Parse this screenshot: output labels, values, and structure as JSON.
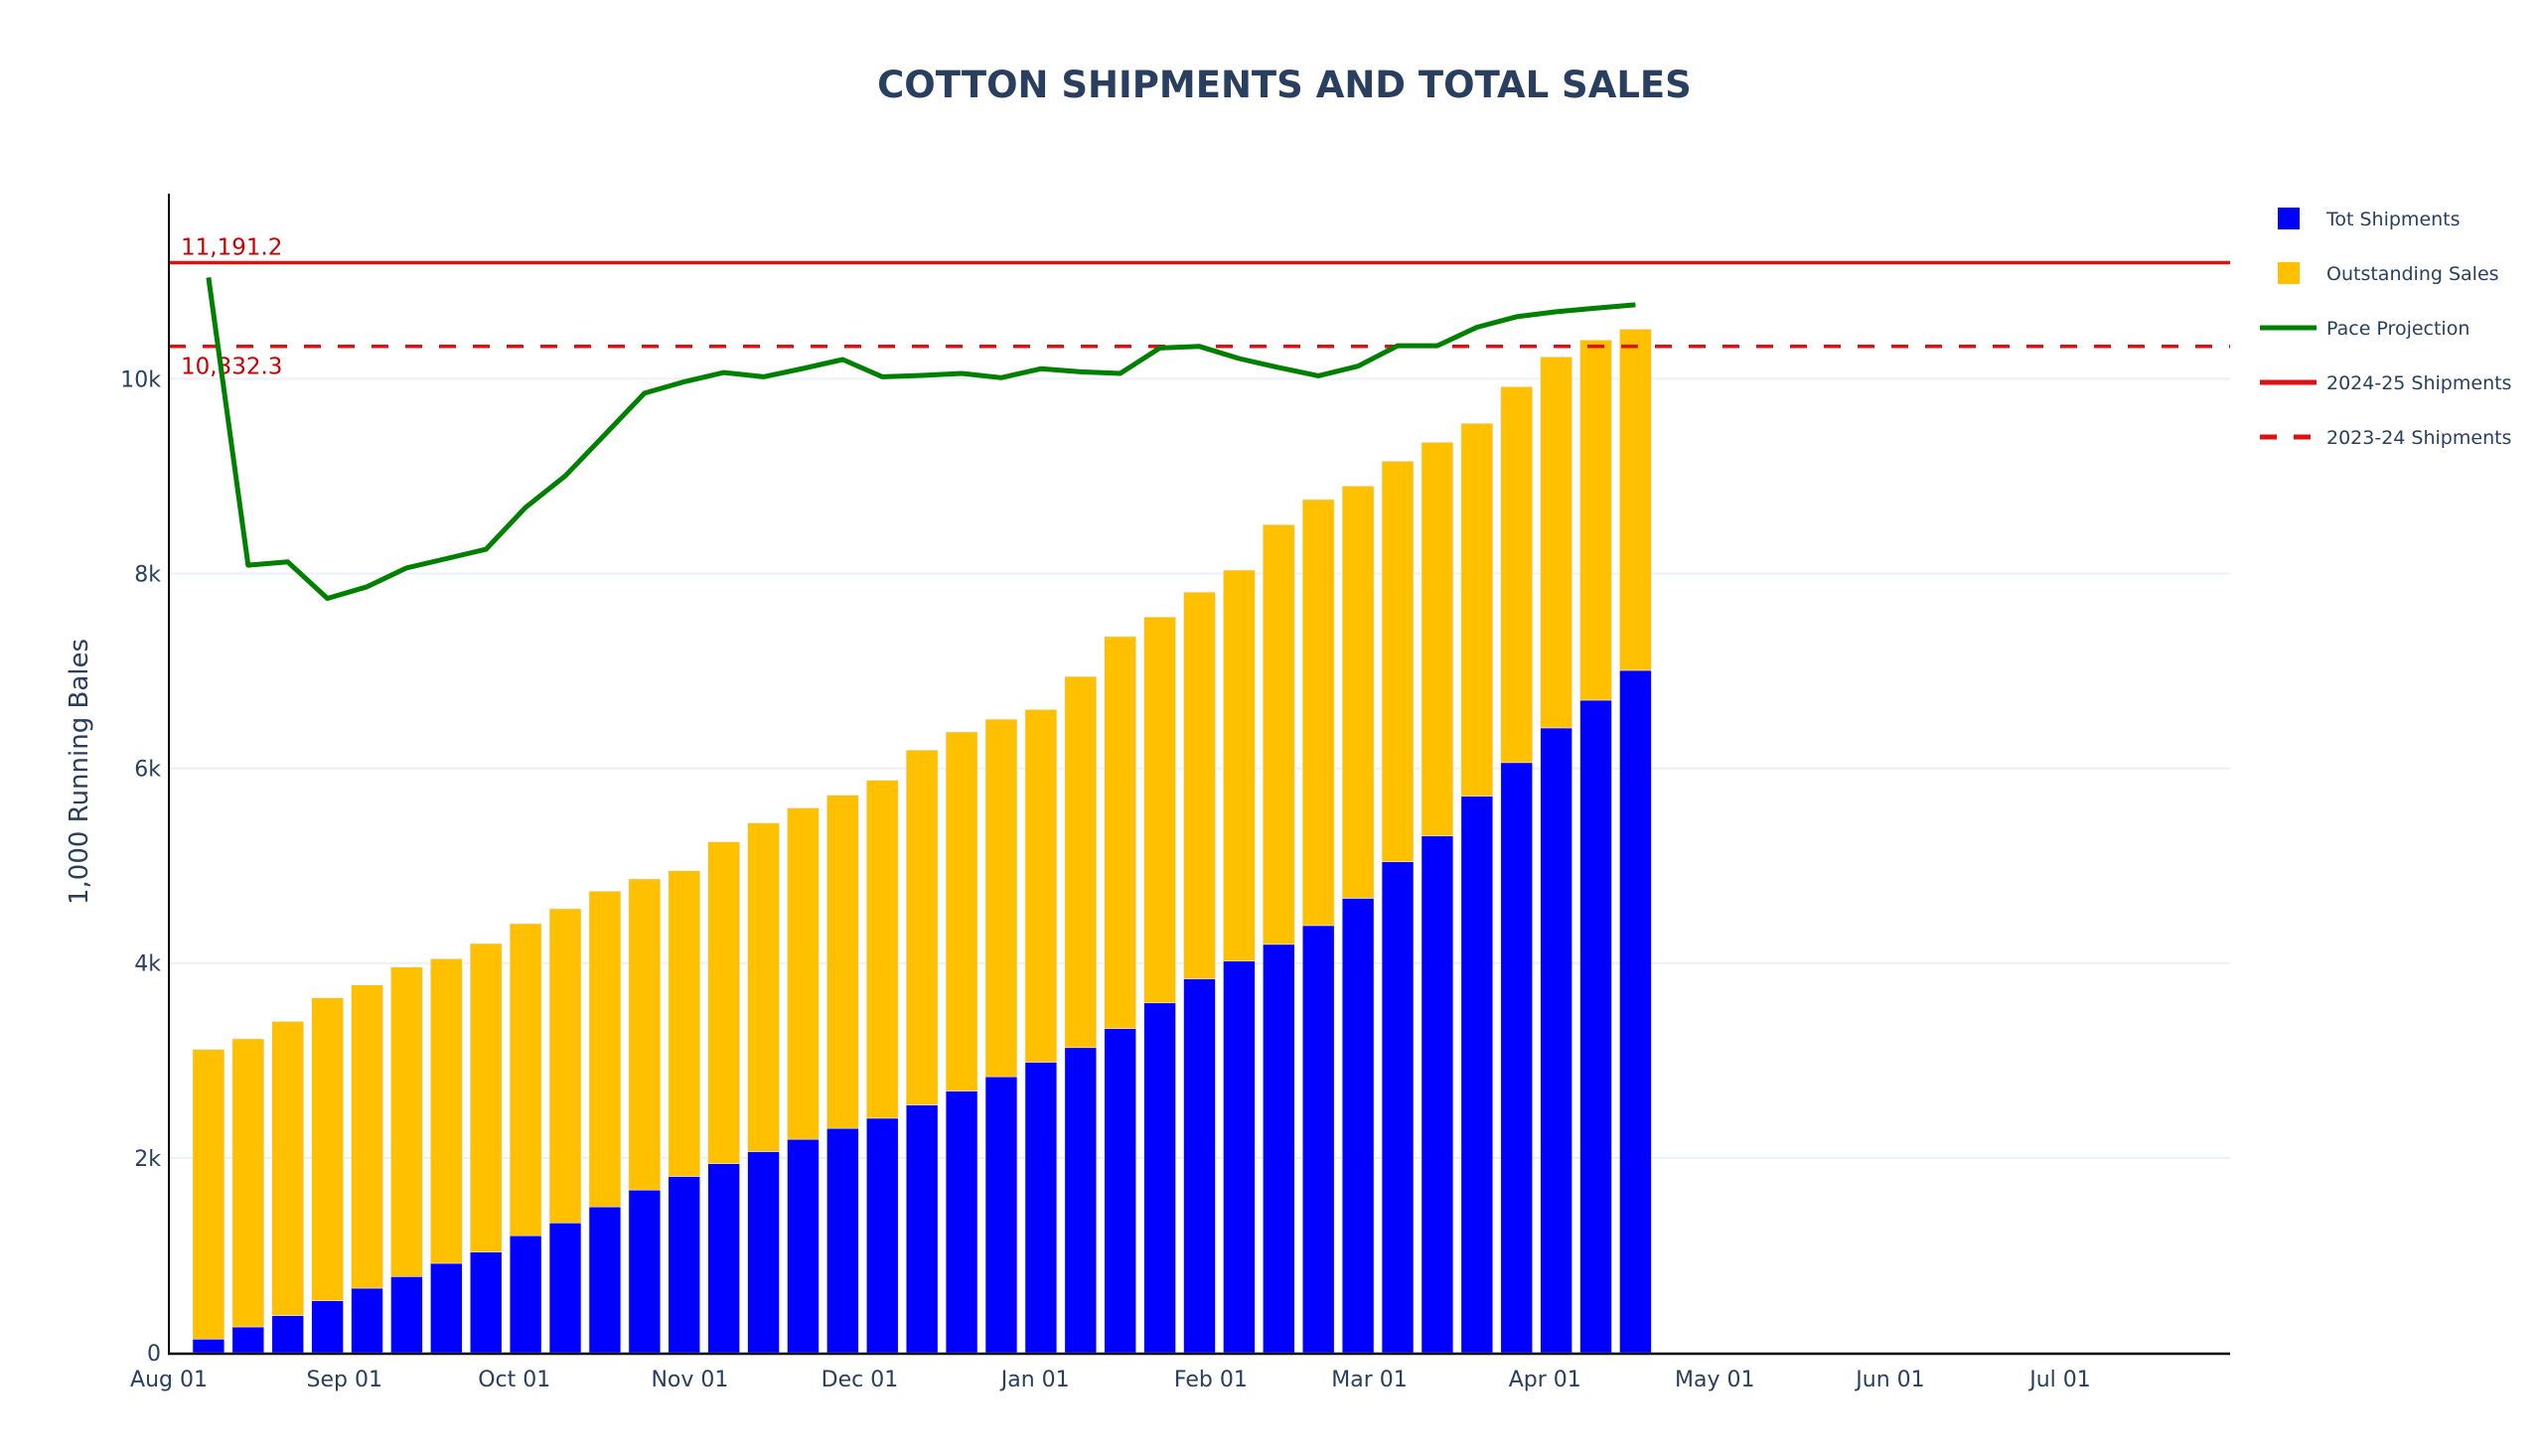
{
  "chart_data": {
    "type": "bar",
    "title": "COTTON SHIPMENTS AND TOTAL SALES",
    "xlabel": "",
    "ylabel": "1,000 Running Bales",
    "barmode": "stack",
    "x_range": [
      "2024-08-01",
      "2025-07-31"
    ],
    "ylim": [
      0,
      11900
    ],
    "grid": true,
    "legend_position": "top-right",
    "x_ticks": [
      {
        "date": "2024-08-01",
        "label": "Aug 01"
      },
      {
        "date": "2024-09-01",
        "label": "Sep 01"
      },
      {
        "date": "2024-10-01",
        "label": "Oct 01"
      },
      {
        "date": "2024-11-01",
        "label": "Nov 01"
      },
      {
        "date": "2024-12-01",
        "label": "Dec 01"
      },
      {
        "date": "2025-01-01",
        "label": "Jan 01"
      },
      {
        "date": "2025-02-01",
        "label": "Feb 01"
      },
      {
        "date": "2025-03-01",
        "label": "Mar 01"
      },
      {
        "date": "2025-04-01",
        "label": "Apr 01"
      },
      {
        "date": "2025-05-01",
        "label": "May 01"
      },
      {
        "date": "2025-06-01",
        "label": "Jun 01"
      },
      {
        "date": "2025-07-01",
        "label": "Jul 01"
      }
    ],
    "y_ticks": [
      {
        "value": 0,
        "label": "0"
      },
      {
        "value": 2000,
        "label": "2k"
      },
      {
        "value": 4000,
        "label": "4k"
      },
      {
        "value": 6000,
        "label": "6k"
      },
      {
        "value": 8000,
        "label": "8k"
      },
      {
        "value": 10000,
        "label": "10k"
      }
    ],
    "x": [
      "2024-08-08",
      "2024-08-15",
      "2024-08-22",
      "2024-08-29",
      "2024-09-05",
      "2024-09-12",
      "2024-09-19",
      "2024-09-26",
      "2024-10-03",
      "2024-10-10",
      "2024-10-17",
      "2024-10-24",
      "2024-10-31",
      "2024-11-07",
      "2024-11-14",
      "2024-11-21",
      "2024-11-28",
      "2024-12-05",
      "2024-12-12",
      "2024-12-19",
      "2024-12-26",
      "2025-01-02",
      "2025-01-09",
      "2025-01-16",
      "2025-01-23",
      "2025-01-30",
      "2025-02-06",
      "2025-02-13",
      "2025-02-20",
      "2025-02-27",
      "2025-03-06",
      "2025-03-13",
      "2025-03-20",
      "2025-03-27",
      "2025-04-03",
      "2025-04-10",
      "2025-04-17"
    ],
    "series": [
      {
        "name": "Tot Shipments",
        "type": "bar",
        "color": "#0000ff",
        "values": [
          140,
          265,
          381,
          534,
          663,
          782,
          918,
          1034,
          1201,
          1333,
          1497,
          1670,
          1810,
          1942,
          2065,
          2191,
          2303,
          2408,
          2544,
          2687,
          2833,
          2983,
          3133,
          3329,
          3592,
          3839,
          4021,
          4193,
          4386,
          4666,
          5041,
          5307,
          5715,
          6059,
          6415,
          6700,
          7006
        ]
      },
      {
        "name": "Outstanding Sales",
        "type": "bar",
        "color": "#ffc000",
        "values": [
          2974,
          2958,
          3020,
          3109,
          3113,
          3177,
          3126,
          3167,
          3204,
          3225,
          3241,
          3194,
          3139,
          3303,
          3374,
          3402,
          3421,
          3469,
          3643,
          3686,
          3671,
          3620,
          3809,
          4024,
          3962,
          3970,
          4014,
          4308,
          4374,
          4232,
          4112,
          4040,
          3826,
          3859,
          3809,
          3697,
          3503
        ]
      },
      {
        "name": "Pace Projection",
        "type": "line",
        "color": "#008000",
        "values": [
          11039,
          8085,
          8119,
          7745,
          7864,
          8058,
          8153,
          8248,
          8679,
          9002,
          9426,
          9851,
          9969,
          10064,
          10020,
          10105,
          10197,
          10020,
          10034,
          10054,
          10010,
          10102,
          10071,
          10054,
          10315,
          10332,
          10207,
          10115,
          10030,
          10129,
          10339,
          10339,
          10529,
          10637,
          10688,
          10725,
          10759
        ]
      },
      {
        "name": "2024-25 Shipments",
        "type": "hline",
        "color": "#dd1111",
        "dash": "solid",
        "value": 11191.2,
        "annotation": "11,191.2"
      },
      {
        "name": "2023-24 Shipments",
        "type": "hline",
        "color": "#dd1111",
        "dash": "dash",
        "value": 10332.3,
        "annotation": "10,332.3"
      }
    ]
  }
}
